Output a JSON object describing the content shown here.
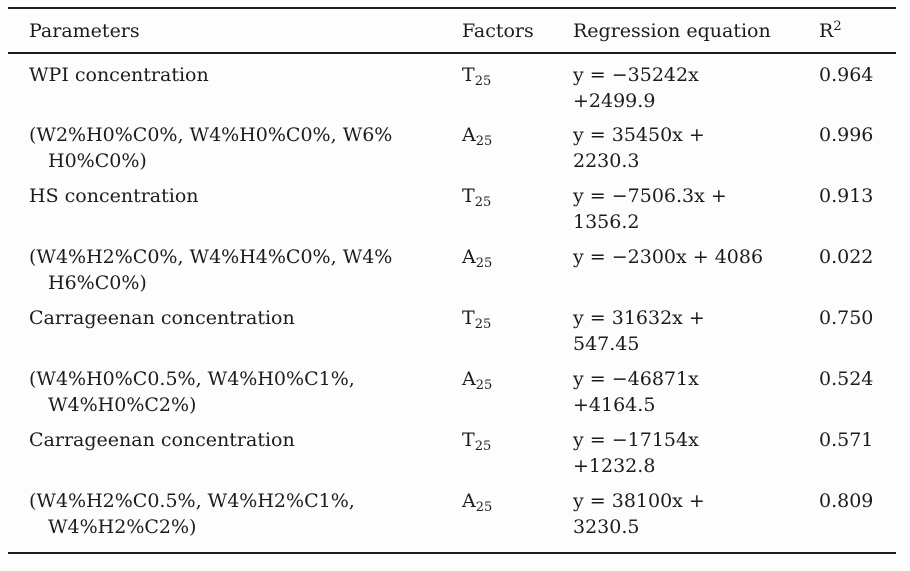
{
  "page": {
    "background_color": "#fdfdfd",
    "text_color": "#1c1c1c",
    "rule_color": "#1c1c1c"
  },
  "table": {
    "headers": {
      "parameters": "Parameters",
      "factors": "Factors",
      "regression": "Regression equation",
      "r2_base": "R",
      "r2_sup": "2"
    },
    "rows": [
      {
        "parameter": "WPI concentration",
        "factor_base": "T",
        "factor_sub": "25",
        "equation": "y = −35242x\n+2499.9",
        "r2": "0.964"
      },
      {
        "parameter": "(W2%H0%C0%, W4%H0%C0%, W6%\nH0%C0%)",
        "factor_base": "A",
        "factor_sub": "25",
        "equation": "y = 35450x +\n2230.3",
        "r2": "0.996"
      },
      {
        "parameter": "HS concentration",
        "factor_base": "T",
        "factor_sub": "25",
        "equation": "y = −7506.3x +\n1356.2",
        "r2": "0.913"
      },
      {
        "parameter": "(W4%H2%C0%, W4%H4%C0%, W4%\nH6%C0%)",
        "factor_base": "A",
        "factor_sub": "25",
        "equation": "y = −2300x + 4086",
        "r2": "0.022"
      },
      {
        "parameter": "Carrageenan concentration",
        "factor_base": "T",
        "factor_sub": "25",
        "equation": "y = 31632x +\n547.45",
        "r2": "0.750"
      },
      {
        "parameter": "(W4%H0%C0.5%, W4%H0%C1%,\nW4%H0%C2%)",
        "factor_base": "A",
        "factor_sub": "25",
        "equation": "y = −46871x\n+4164.5",
        "r2": "0.524"
      },
      {
        "parameter": "Carrageenan concentration",
        "factor_base": "T",
        "factor_sub": "25",
        "equation": "y = −17154x\n+1232.8",
        "r2": "0.571"
      },
      {
        "parameter": "(W4%H2%C0.5%, W4%H2%C1%,\nW4%H2%C2%)",
        "factor_base": "A",
        "factor_sub": "25",
        "equation": "y = 38100x +\n3230.5",
        "r2": "0.809"
      }
    ]
  }
}
